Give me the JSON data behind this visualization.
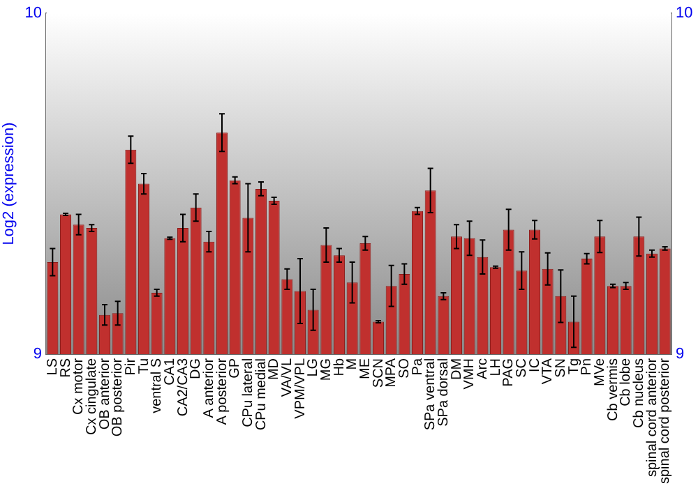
{
  "chart_data": {
    "type": "bar",
    "ylabel": "Log2 (expression)",
    "categories": [
      "LS",
      "RS",
      "Cx motor",
      "Cx cingulate",
      "OB anterior",
      "OB posterior",
      "Pir",
      "Tu",
      "ventral S",
      "CA1",
      "CA2/CA3",
      "DG",
      "A anterior",
      "A posterior",
      "GP",
      "CPu lateral",
      "CPu medial",
      "MD",
      "VA/VL",
      "VPM/VPL",
      "LG",
      "MG",
      "Hb",
      "M",
      "ME",
      "SCN",
      "MPA",
      "SO",
      "Pa",
      "SPa ventral",
      "SPa dorsal",
      "DM",
      "VMH",
      "Arc",
      "LH",
      "PAG",
      "SC",
      "IC",
      "VTA",
      "SN",
      "Tg",
      "Pn",
      "MVe",
      "Cb vermis",
      "Cb lobe",
      "Cb nucleus",
      "spinal cord anterior",
      "spinal cord posterior"
    ],
    "values": [
      9.27,
      9.41,
      9.38,
      9.37,
      9.115,
      9.12,
      9.6,
      9.5,
      9.18,
      9.34,
      9.37,
      9.43,
      9.33,
      9.65,
      9.51,
      9.4,
      9.485,
      9.45,
      9.22,
      9.185,
      9.13,
      9.32,
      9.29,
      9.21,
      9.325,
      9.095,
      9.2,
      9.235,
      9.42,
      9.48,
      9.17,
      9.345,
      9.34,
      9.285,
      9.255,
      9.365,
      9.245,
      9.365,
      9.25,
      9.17,
      9.095,
      9.28,
      9.345,
      9.2,
      9.2,
      9.345,
      9.295,
      9.31
    ],
    "errors": [
      0.04,
      0.003,
      0.03,
      0.01,
      0.03,
      0.035,
      0.04,
      0.03,
      0.01,
      0.003,
      0.04,
      0.04,
      0.03,
      0.055,
      0.01,
      0.1,
      0.02,
      0.01,
      0.03,
      0.095,
      0.06,
      0.05,
      0.02,
      0.06,
      0.02,
      0.003,
      0.06,
      0.03,
      0.01,
      0.065,
      0.01,
      0.035,
      0.05,
      0.05,
      0.003,
      0.06,
      0.055,
      0.027,
      0.047,
      0.077,
      0.075,
      0.015,
      0.047,
      0.005,
      0.01,
      0.057,
      0.01,
      0.005
    ],
    "color": "#c0302e",
    "ylim": [
      9,
      10
    ],
    "yticks": [
      9,
      10
    ],
    "y2lim": [
      9,
      10
    ],
    "y2ticks": [
      9,
      10
    ],
    "grid": false,
    "legend": false
  }
}
